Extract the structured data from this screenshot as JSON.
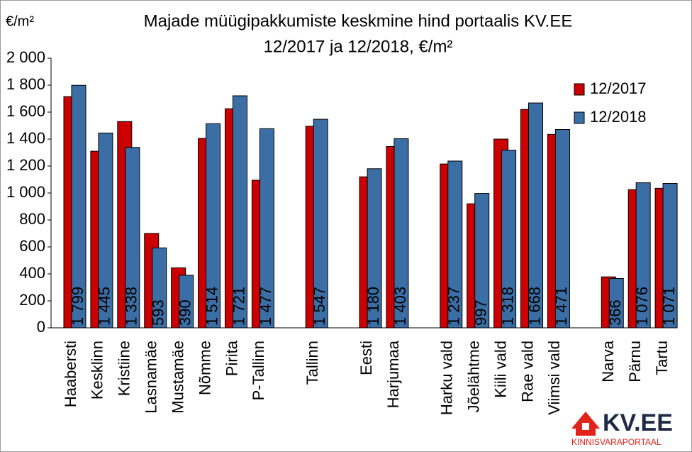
{
  "chart_data": {
    "type": "bar",
    "title": "Majade müügipakkumiste keskmine hind portaalis KV.EE",
    "subtitle": "12/2017 ja 12/2018, €/m²",
    "y_label": "€/m²",
    "categories": [
      "Haabersti",
      "Kesklinn",
      "Kristiine",
      "Lasnamäe",
      "Mustamäe",
      "Nõmme",
      "Pirita",
      "P-Tallinn",
      null,
      "Tallinn",
      null,
      "Eesti",
      "Harjumaa",
      null,
      "Harku vald",
      "Jõelähtme",
      "Kiili vald",
      "Rae vald",
      "Viimsi vald",
      null,
      "Narva",
      "Pärnu",
      "Tartu"
    ],
    "series": [
      {
        "name": "12/2017",
        "color": "#cc0000",
        "values": [
          1715,
          1310,
          1530,
          700,
          445,
          1405,
          1625,
          1095,
          null,
          1495,
          null,
          1120,
          1345,
          null,
          1215,
          920,
          1400,
          1620,
          1435,
          null,
          378,
          1025,
          1035
        ]
      },
      {
        "name": "12/2018",
        "color": "#3c6ea6",
        "values": [
          1799,
          1445,
          1338,
          593,
          390,
          1514,
          1721,
          1477,
          null,
          1547,
          null,
          1180,
          1403,
          null,
          1237,
          997,
          1318,
          1668,
          1471,
          null,
          366,
          1076,
          1071
        ],
        "value_labels": [
          "1 799",
          "1 445",
          "1 338",
          "593",
          "390",
          "1 514",
          "1 721",
          "1 477",
          null,
          "1 547",
          null,
          "1 180",
          "1 403",
          null,
          "1 237",
          "997",
          "1 318",
          "1 668",
          "1 471",
          null,
          "366",
          "1 076",
          "1 071"
        ]
      }
    ],
    "ylim": [
      0,
      2000
    ],
    "yticks": [
      0,
      200,
      400,
      600,
      800,
      {
        "value": 1000,
        "label": "1 000"
      },
      {
        "value": 1200,
        "label": "1 200"
      },
      {
        "value": 1400,
        "label": "1 400"
      },
      {
        "value": 1600,
        "label": "1 600"
      },
      {
        "value": 1800,
        "label": "1 800"
      },
      {
        "value": 2000,
        "label": "2 000"
      }
    ],
    "grid": false,
    "legend": "top-right"
  },
  "logo": {
    "text": "KV.EE",
    "tagline": "KINNISVARAPORTAAL"
  }
}
